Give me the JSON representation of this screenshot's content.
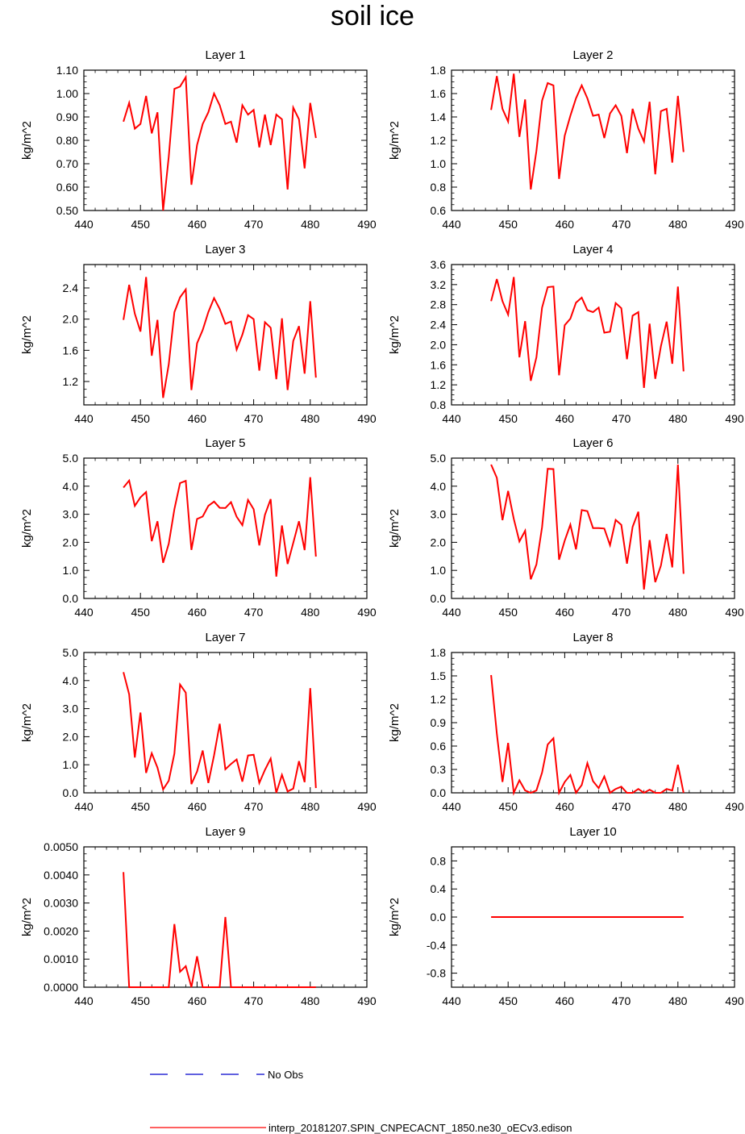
{
  "title": "soil ice",
  "colors": {
    "model": "#ff0000",
    "obs": "#0000cc",
    "axis": "#000000"
  },
  "legend": {
    "obs_label": "No Obs",
    "model_label": "interp_20181207.SPIN_CNPECACNT_1850.ne30_oECv3.edison"
  },
  "chart_data": [
    {
      "type": "line",
      "title": "Layer 1",
      "xlabel": "",
      "ylabel": "kg/m^2",
      "xlim": [
        440,
        490
      ],
      "xticks": [
        440,
        450,
        460,
        470,
        480,
        490
      ],
      "xtick_labels": [
        "440",
        "450",
        "460",
        "470",
        "480",
        "490"
      ],
      "ylim": [
        0.5,
        1.1
      ],
      "yticks": [
        0.5,
        0.6,
        0.7,
        0.8,
        0.9,
        1.0,
        1.1
      ],
      "ytick_labels": [
        "0.50",
        "0.60",
        "0.70",
        "0.80",
        "0.90",
        "1.00",
        "1.10"
      ],
      "x": [
        447,
        448,
        449,
        450,
        451,
        452,
        453,
        454,
        455,
        456,
        457,
        458,
        459,
        460,
        461,
        462,
        463,
        464,
        465,
        466,
        467,
        468,
        469,
        470,
        471,
        472,
        473,
        474,
        475,
        476,
        477,
        478,
        479,
        480,
        481
      ],
      "series": [
        {
          "name": "interp_20181207.SPIN_CNPECACNT_1850.ne30_oECv3.edison",
          "values": [
            0.88,
            0.96,
            0.85,
            0.87,
            0.99,
            0.83,
            0.92,
            0.5,
            0.73,
            1.02,
            1.03,
            1.07,
            0.61,
            0.78,
            0.87,
            0.92,
            1.0,
            0.95,
            0.87,
            0.88,
            0.79,
            0.95,
            0.91,
            0.93,
            0.77,
            0.91,
            0.78,
            0.91,
            0.89,
            0.59,
            0.94,
            0.89,
            0.68,
            0.96,
            0.81
          ]
        }
      ]
    },
    {
      "type": "line",
      "title": "Layer 2",
      "xlabel": "",
      "ylabel": "kg/m^2",
      "xlim": [
        440,
        490
      ],
      "xticks": [
        440,
        450,
        460,
        470,
        480,
        490
      ],
      "xtick_labels": [
        "440",
        "450",
        "460",
        "470",
        "480",
        "490"
      ],
      "ylim": [
        0.6,
        1.8
      ],
      "yticks": [
        0.6,
        0.8,
        1.0,
        1.2,
        1.4,
        1.6,
        1.8
      ],
      "ytick_labels": [
        "0.6",
        "0.8",
        "1.0",
        "1.2",
        "1.4",
        "1.6",
        "1.8"
      ],
      "x": [
        447,
        448,
        449,
        450,
        451,
        452,
        453,
        454,
        455,
        456,
        457,
        458,
        459,
        460,
        461,
        462,
        463,
        464,
        465,
        466,
        467,
        468,
        469,
        470,
        471,
        472,
        473,
        474,
        475,
        476,
        477,
        478,
        479,
        480,
        481
      ],
      "series": [
        {
          "name": "interp_20181207.SPIN_CNPECACNT_1850.ne30_oECv3.edison",
          "values": [
            1.46,
            1.75,
            1.47,
            1.36,
            1.77,
            1.23,
            1.55,
            0.78,
            1.11,
            1.54,
            1.69,
            1.67,
            0.87,
            1.24,
            1.41,
            1.56,
            1.67,
            1.56,
            1.41,
            1.42,
            1.22,
            1.43,
            1.5,
            1.41,
            1.09,
            1.47,
            1.3,
            1.19,
            1.53,
            0.91,
            1.45,
            1.47,
            1.01,
            1.58,
            1.1
          ]
        }
      ]
    },
    {
      "type": "line",
      "title": "Layer 3",
      "xlabel": "",
      "ylabel": "kg/m^2",
      "xlim": [
        440,
        490
      ],
      "xticks": [
        440,
        450,
        460,
        470,
        480,
        490
      ],
      "xtick_labels": [
        "440",
        "450",
        "460",
        "470",
        "480",
        "490"
      ],
      "ylim": [
        0.9,
        2.7
      ],
      "yticks": [
        1.2,
        1.6,
        2.0,
        2.4
      ],
      "ytick_labels": [
        "1.2",
        "1.6",
        "2.0",
        "2.4"
      ],
      "x": [
        447,
        448,
        449,
        450,
        451,
        452,
        453,
        454,
        455,
        456,
        457,
        458,
        459,
        460,
        461,
        462,
        463,
        464,
        465,
        466,
        467,
        468,
        469,
        470,
        471,
        472,
        473,
        474,
        475,
        476,
        477,
        478,
        479,
        480,
        481
      ],
      "series": [
        {
          "name": "interp_20181207.SPIN_CNPECACNT_1850.ne30_oECv3.edison",
          "values": [
            1.99,
            2.44,
            2.07,
            1.84,
            2.54,
            1.53,
            1.99,
            0.99,
            1.42,
            2.09,
            2.28,
            2.38,
            1.09,
            1.69,
            1.86,
            2.09,
            2.27,
            2.13,
            1.94,
            1.97,
            1.61,
            1.8,
            2.05,
            2.0,
            1.34,
            1.96,
            1.89,
            1.23,
            2.01,
            1.09,
            1.72,
            1.91,
            1.3,
            2.23,
            1.25
          ]
        }
      ]
    },
    {
      "type": "line",
      "title": "Layer 4",
      "xlabel": "",
      "ylabel": "kg/m^2",
      "xlim": [
        440,
        490
      ],
      "xticks": [
        440,
        450,
        460,
        470,
        480,
        490
      ],
      "xtick_labels": [
        "440",
        "450",
        "460",
        "470",
        "480",
        "490"
      ],
      "ylim": [
        0.8,
        3.6
      ],
      "yticks": [
        0.8,
        1.2,
        1.6,
        2.0,
        2.4,
        2.8,
        3.2,
        3.6
      ],
      "ytick_labels": [
        "0.8",
        "1.2",
        "1.6",
        "2.0",
        "2.4",
        "2.8",
        "3.2",
        "3.6"
      ],
      "x": [
        447,
        448,
        449,
        450,
        451,
        452,
        453,
        454,
        455,
        456,
        457,
        458,
        459,
        460,
        461,
        462,
        463,
        464,
        465,
        466,
        467,
        468,
        469,
        470,
        471,
        472,
        473,
        474,
        475,
        476,
        477,
        478,
        479,
        480,
        481
      ],
      "series": [
        {
          "name": "interp_20181207.SPIN_CNPECACNT_1850.ne30_oECv3.edison",
          "values": [
            2.87,
            3.31,
            2.87,
            2.6,
            3.35,
            1.75,
            2.47,
            1.28,
            1.75,
            2.74,
            3.15,
            3.16,
            1.39,
            2.39,
            2.52,
            2.84,
            2.94,
            2.69,
            2.65,
            2.74,
            2.24,
            2.26,
            2.83,
            2.73,
            1.71,
            2.58,
            2.65,
            1.14,
            2.42,
            1.32,
            1.97,
            2.46,
            1.62,
            3.16,
            1.47
          ]
        }
      ]
    },
    {
      "type": "line",
      "title": "Layer 5",
      "xlabel": "",
      "ylabel": "kg/m^2",
      "xlim": [
        440,
        490
      ],
      "xticks": [
        440,
        450,
        460,
        470,
        480,
        490
      ],
      "xtick_labels": [
        "440",
        "450",
        "460",
        "470",
        "480",
        "490"
      ],
      "ylim": [
        0.0,
        5.0
      ],
      "yticks": [
        0.0,
        1.0,
        2.0,
        3.0,
        4.0,
        5.0
      ],
      "ytick_labels": [
        "0.0",
        "1.0",
        "2.0",
        "3.0",
        "4.0",
        "5.0"
      ],
      "x": [
        447,
        448,
        449,
        450,
        451,
        452,
        453,
        454,
        455,
        456,
        457,
        458,
        459,
        460,
        461,
        462,
        463,
        464,
        465,
        466,
        467,
        468,
        469,
        470,
        471,
        472,
        473,
        474,
        475,
        476,
        477,
        478,
        479,
        480,
        481
      ],
      "series": [
        {
          "name": "interp_20181207.SPIN_CNPECACNT_1850.ne30_oECv3.edison",
          "values": [
            3.95,
            4.2,
            3.3,
            3.6,
            3.79,
            2.04,
            2.75,
            1.27,
            1.95,
            3.18,
            4.11,
            4.19,
            1.73,
            2.83,
            2.92,
            3.3,
            3.45,
            3.23,
            3.22,
            3.43,
            2.91,
            2.61,
            3.51,
            3.18,
            1.89,
            2.98,
            3.54,
            0.78,
            2.6,
            1.23,
            1.98,
            2.75,
            1.72,
            4.32,
            1.49
          ]
        }
      ]
    },
    {
      "type": "line",
      "title": "Layer 6",
      "xlabel": "",
      "ylabel": "kg/m^2",
      "xlim": [
        440,
        490
      ],
      "xticks": [
        440,
        450,
        460,
        470,
        480,
        490
      ],
      "xtick_labels": [
        "440",
        "450",
        "460",
        "470",
        "480",
        "490"
      ],
      "ylim": [
        0.0,
        5.0
      ],
      "yticks": [
        0.0,
        1.0,
        2.0,
        3.0,
        4.0,
        5.0
      ],
      "ytick_labels": [
        "0.0",
        "1.0",
        "2.0",
        "3.0",
        "4.0",
        "5.0"
      ],
      "x": [
        447,
        448,
        449,
        450,
        451,
        452,
        453,
        454,
        455,
        456,
        457,
        458,
        459,
        460,
        461,
        462,
        463,
        464,
        465,
        466,
        467,
        468,
        469,
        470,
        471,
        472,
        473,
        474,
        475,
        476,
        477,
        478,
        479,
        480,
        481
      ],
      "series": [
        {
          "name": "interp_20181207.SPIN_CNPECACNT_1850.ne30_oECv3.edison",
          "values": [
            4.77,
            4.3,
            2.79,
            3.83,
            2.84,
            2.03,
            2.41,
            0.68,
            1.21,
            2.54,
            4.62,
            4.61,
            1.38,
            2.06,
            2.63,
            1.75,
            3.15,
            3.11,
            2.51,
            2.51,
            2.49,
            1.9,
            2.8,
            2.62,
            1.24,
            2.55,
            3.09,
            0.32,
            2.08,
            0.58,
            1.17,
            2.3,
            1.11,
            4.77,
            0.88
          ]
        }
      ]
    },
    {
      "type": "line",
      "title": "Layer 7",
      "xlabel": "",
      "ylabel": "kg/m^2",
      "xlim": [
        440,
        490
      ],
      "xticks": [
        440,
        450,
        460,
        470,
        480,
        490
      ],
      "xtick_labels": [
        "440",
        "450",
        "460",
        "470",
        "480",
        "490"
      ],
      "ylim": [
        0.0,
        5.0
      ],
      "yticks": [
        0.0,
        1.0,
        2.0,
        3.0,
        4.0,
        5.0
      ],
      "ytick_labels": [
        "0.0",
        "1.0",
        "2.0",
        "3.0",
        "4.0",
        "5.0"
      ],
      "x": [
        447,
        448,
        449,
        450,
        451,
        452,
        453,
        454,
        455,
        456,
        457,
        458,
        459,
        460,
        461,
        462,
        463,
        464,
        465,
        466,
        467,
        468,
        469,
        470,
        471,
        472,
        473,
        474,
        475,
        476,
        477,
        478,
        479,
        480,
        481
      ],
      "series": [
        {
          "name": "interp_20181207.SPIN_CNPECACNT_1850.ne30_oECv3.edison",
          "values": [
            4.3,
            3.51,
            1.26,
            2.86,
            0.71,
            1.41,
            0.9,
            0.12,
            0.43,
            1.4,
            3.86,
            3.57,
            0.31,
            0.76,
            1.51,
            0.35,
            1.34,
            2.46,
            0.84,
            1.03,
            1.19,
            0.4,
            1.33,
            1.36,
            0.35,
            0.82,
            1.22,
            0.0,
            0.64,
            0.05,
            0.15,
            1.13,
            0.38,
            3.73,
            0.17
          ]
        }
      ]
    },
    {
      "type": "line",
      "title": "Layer 8",
      "xlabel": "",
      "ylabel": "kg/m^2",
      "xlim": [
        440,
        490
      ],
      "xticks": [
        440,
        450,
        460,
        470,
        480,
        490
      ],
      "xtick_labels": [
        "440",
        "450",
        "460",
        "470",
        "480",
        "490"
      ],
      "ylim": [
        0.0,
        1.8
      ],
      "yticks": [
        0.0,
        0.3,
        0.6,
        0.9,
        1.2,
        1.5,
        1.8
      ],
      "ytick_labels": [
        "0.0",
        "0.3",
        "0.6",
        "0.9",
        "1.2",
        "1.5",
        "1.8"
      ],
      "x": [
        447,
        448,
        449,
        450,
        451,
        452,
        453,
        454,
        455,
        456,
        457,
        458,
        459,
        460,
        461,
        462,
        463,
        464,
        465,
        466,
        467,
        468,
        469,
        470,
        471,
        472,
        473,
        474,
        475,
        476,
        477,
        478,
        479,
        480,
        481
      ],
      "series": [
        {
          "name": "interp_20181207.SPIN_CNPECACNT_1850.ne30_oECv3.edison",
          "values": [
            1.51,
            0.76,
            0.14,
            0.64,
            0.0,
            0.16,
            0.03,
            0.0,
            0.03,
            0.26,
            0.62,
            0.7,
            0.0,
            0.14,
            0.23,
            0.0,
            0.1,
            0.38,
            0.15,
            0.06,
            0.21,
            0.0,
            0.05,
            0.08,
            0.0,
            0.0,
            0.05,
            0.0,
            0.04,
            0.0,
            0.0,
            0.05,
            0.03,
            0.36,
            0.0
          ]
        }
      ]
    },
    {
      "type": "line",
      "title": "Layer 9",
      "xlabel": "",
      "ylabel": "kg/m^2",
      "xlim": [
        440,
        490
      ],
      "xticks": [
        440,
        450,
        460,
        470,
        480,
        490
      ],
      "xtick_labels": [
        "440",
        "450",
        "460",
        "470",
        "480",
        "490"
      ],
      "ylim": [
        0.0,
        0.005
      ],
      "yticks": [
        0.0,
        0.001,
        0.002,
        0.003,
        0.004,
        0.005
      ],
      "ytick_labels": [
        "0.0000",
        "0.0010",
        "0.0020",
        "0.0030",
        "0.0040",
        "0.0050"
      ],
      "x": [
        447,
        448,
        449,
        450,
        451,
        452,
        453,
        454,
        455,
        456,
        457,
        458,
        459,
        460,
        461,
        462,
        463,
        464,
        465,
        466,
        467,
        468,
        469,
        470,
        471,
        472,
        473,
        474,
        475,
        476,
        477,
        478,
        479,
        480,
        481
      ],
      "series": [
        {
          "name": "interp_20181207.SPIN_CNPECACNT_1850.ne30_oECv3.edison",
          "values": [
            0.0041,
            0.0,
            0.0,
            0.0,
            0.0,
            0.0,
            0.0,
            0.0,
            0.0,
            0.00225,
            0.00055,
            0.00075,
            0.0,
            0.0011,
            0.0,
            0.0,
            0.0,
            0.0,
            0.0025,
            0.0,
            0.0,
            0.0,
            0.0,
            0.0,
            0.0,
            0.0,
            0.0,
            0.0,
            0.0,
            0.0,
            0.0,
            0.0,
            0.0,
            0.0,
            0.0
          ]
        }
      ]
    },
    {
      "type": "line",
      "title": "Layer 10",
      "xlabel": "",
      "ylabel": "kg/m^2",
      "xlim": [
        440,
        490
      ],
      "xticks": [
        440,
        450,
        460,
        470,
        480,
        490
      ],
      "xtick_labels": [
        "440",
        "450",
        "460",
        "470",
        "480",
        "490"
      ],
      "ylim": [
        -1.0,
        1.0
      ],
      "yticks": [
        -0.8,
        -0.4,
        0.0,
        0.4,
        0.8
      ],
      "ytick_labels": [
        "-0.8",
        "-0.4",
        "0.0",
        "0.4",
        "0.8"
      ],
      "x": [
        447,
        448,
        449,
        450,
        451,
        452,
        453,
        454,
        455,
        456,
        457,
        458,
        459,
        460,
        461,
        462,
        463,
        464,
        465,
        466,
        467,
        468,
        469,
        470,
        471,
        472,
        473,
        474,
        475,
        476,
        477,
        478,
        479,
        480,
        481
      ],
      "series": [
        {
          "name": "interp_20181207.SPIN_CNPECACNT_1850.ne30_oECv3.edison",
          "values": [
            0,
            0,
            0,
            0,
            0,
            0,
            0,
            0,
            0,
            0,
            0,
            0,
            0,
            0,
            0,
            0,
            0,
            0,
            0,
            0,
            0,
            0,
            0,
            0,
            0,
            0,
            0,
            0,
            0,
            0,
            0,
            0,
            0,
            0,
            0
          ]
        }
      ]
    }
  ]
}
